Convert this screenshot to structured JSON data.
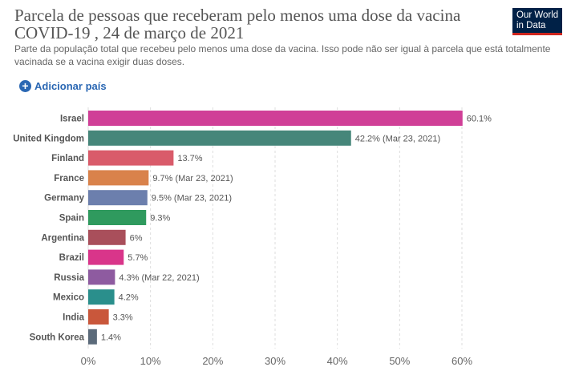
{
  "header": {
    "title": "Parcela de pessoas que receberam pelo menos uma dose da vacina COVID-19 , 24 de março de 2021",
    "subtitle": "Parte da população total que recebeu pelo menos uma dose da vacina. Isso pode não ser igual à parcela que está totalmente vacinada se a vacina exigir duas doses.",
    "logo_line1": "Our World",
    "logo_line2": "in Data"
  },
  "controls": {
    "add_country_label": "Adicionar país",
    "add_icon": "plus-circle-icon"
  },
  "colors": {
    "link": "#2a67b3",
    "logo_bg": "#002147",
    "logo_accent": "#ce261e",
    "grid": "#dddddd"
  },
  "chart_data": {
    "type": "bar",
    "orientation": "horizontal",
    "title": "Parcela de pessoas que receberam pelo menos uma dose da vacina COVID-19 , 24 de março de 2021",
    "xlim": [
      0,
      60
    ],
    "x_ticks": [
      "0%",
      "10%",
      "20%",
      "30%",
      "40%",
      "50%",
      "60%"
    ],
    "grid": true,
    "categories": [
      "Israel",
      "United Kingdom",
      "Finland",
      "France",
      "Germany",
      "Spain",
      "Argentina",
      "Brazil",
      "Russia",
      "Mexico",
      "India",
      "South Korea"
    ],
    "values": [
      60.1,
      42.2,
      13.7,
      9.7,
      9.5,
      9.3,
      6,
      5.7,
      4.3,
      4.2,
      3.3,
      1.4
    ],
    "value_labels": [
      "60.1%",
      "42.2% (Mar 23, 2021)",
      "13.7%",
      "9.7% (Mar 23, 2021)",
      "9.5% (Mar 23, 2021)",
      "9.3%",
      "6%",
      "5.7%",
      "4.3% (Mar 22, 2021)",
      "4.2%",
      "3.3%",
      "1.4%"
    ],
    "colors": [
      "#d03f97",
      "#46867a",
      "#d95b6a",
      "#d9824b",
      "#6c7fad",
      "#2f9a5e",
      "#a94f5b",
      "#d9358a",
      "#8e5ba0",
      "#2a8f8c",
      "#c9573b",
      "#5b6a7a"
    ]
  }
}
